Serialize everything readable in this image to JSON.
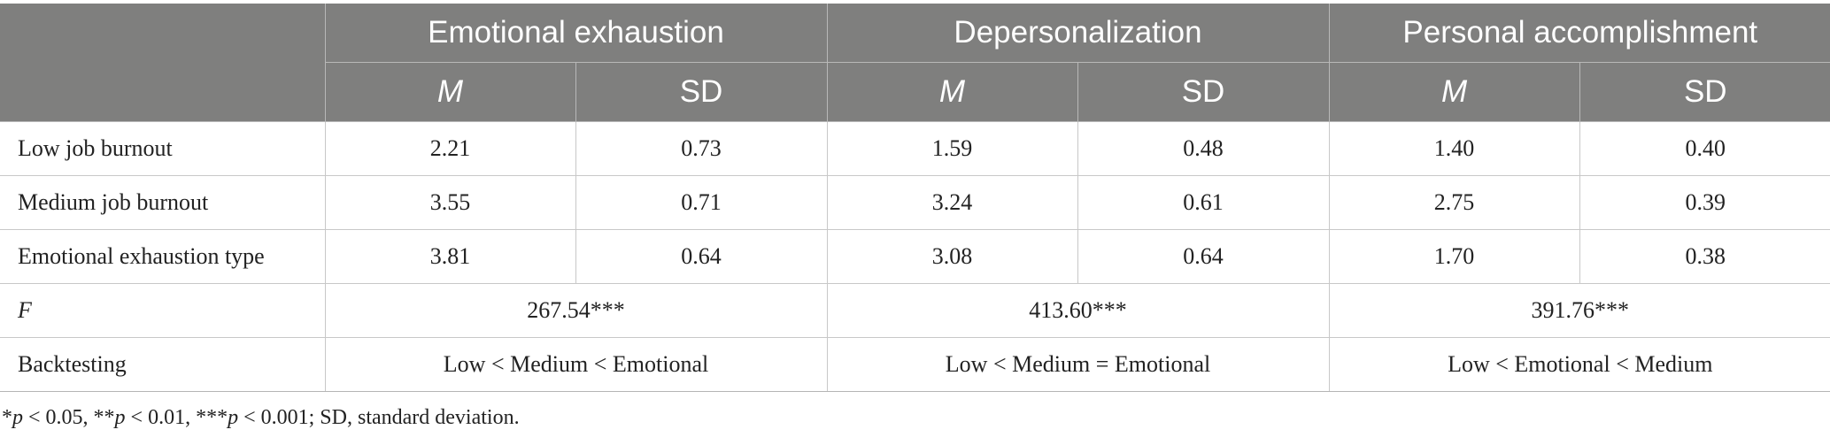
{
  "table": {
    "groups": [
      "Emotional exhaustion",
      "Depersonalization",
      "Personal accomplishment"
    ],
    "subheaders": [
      "M",
      "SD",
      "M",
      "SD",
      "M",
      "SD"
    ],
    "rows": [
      {
        "label": "Low job burnout",
        "values": [
          "2.21",
          "0.73",
          "1.59",
          "0.48",
          "1.40",
          "0.40"
        ]
      },
      {
        "label": "Medium job burnout",
        "values": [
          "3.55",
          "0.71",
          "3.24",
          "0.61",
          "2.75",
          "0.39"
        ]
      },
      {
        "label": "Emotional exhaustion type",
        "values": [
          "3.81",
          "0.64",
          "3.08",
          "0.64",
          "1.70",
          "0.38"
        ]
      }
    ],
    "f_row": {
      "label": "F",
      "values": [
        "267.54***",
        "413.60***",
        "391.76***"
      ]
    },
    "backtesting_row": {
      "label": "Backtesting",
      "values": [
        "Low < Medium < Emotional",
        "Low < Medium = Emotional",
        "Low < Emotional < Medium"
      ]
    }
  },
  "footnote": {
    "p1_star": "*",
    "p1_var": "p",
    "p1_rest": " < 0.05, **",
    "p2_var": "p",
    "p2_rest": " < 0.01, ***",
    "p3_var": "p",
    "p3_rest": " < 0.001; SD, standard deviation."
  }
}
